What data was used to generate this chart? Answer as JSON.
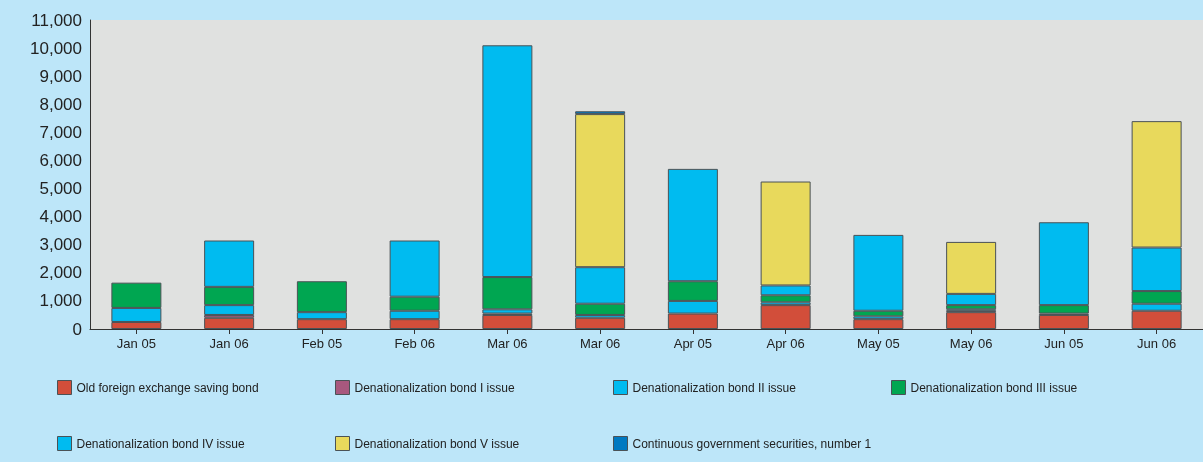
{
  "chart_data": {
    "type": "bar",
    "stacked": true,
    "categories": [
      "Jan 05",
      "Jan 06",
      "Feb 05",
      "Feb 06",
      "Mar 06",
      "Mar 06",
      "Apr 05",
      "Apr 06",
      "May 05",
      "May 06",
      "Jun 05",
      "Jun 06"
    ],
    "series": [
      {
        "name": "Old foreign exchange saving bond",
        "color": "#d24e3a",
        "values": [
          250,
          400,
          350,
          350,
          500,
          400,
          550,
          850,
          350,
          600,
          500,
          650
        ]
      },
      {
        "name": "Denationalization bond I issue",
        "color": "#a8587e",
        "values": [
          null,
          100,
          null,
          null,
          50,
          null,
          null,
          null,
          null,
          50,
          50,
          null
        ]
      },
      {
        "name": "Denationalization bond II issue",
        "color": "#00bbf0",
        "values": [
          500,
          350,
          250,
          300,
          150,
          100,
          450,
          100,
          100,
          50,
          null,
          250
        ]
      },
      {
        "name": "Denationalization bond III issue",
        "color": "#00a651",
        "values": [
          900,
          650,
          1100,
          500,
          1150,
          400,
          700,
          250,
          200,
          150,
          300,
          450
        ]
      },
      {
        "name": "Denationalization bond IV issue",
        "color": "#00bbf0",
        "values": [
          null,
          1650,
          null,
          2000,
          8250,
          1300,
          4000,
          350,
          2700,
          400,
          2950,
          1550
        ]
      },
      {
        "name": "Denationalization bond V issue",
        "color": "#e8d95c",
        "values": [
          null,
          null,
          null,
          null,
          null,
          5450,
          null,
          3700,
          null,
          1850,
          null,
          4500
        ]
      },
      {
        "name": "Continuous government securities, number 1",
        "color": "#0079c1",
        "values": [
          null,
          null,
          null,
          null,
          null,
          100,
          null,
          null,
          null,
          null,
          null,
          null
        ]
      }
    ],
    "ylim": [
      0,
      11000
    ],
    "yticks": [
      0,
      {
        "value": 1000,
        "label": "1,000"
      },
      {
        "value": 2000,
        "label": "2,000"
      },
      {
        "value": 3000,
        "label": "3,000"
      },
      {
        "value": 4000,
        "label": "4,000"
      },
      {
        "value": 5000,
        "label": "5,000"
      },
      {
        "value": 6000,
        "label": "6,000"
      },
      {
        "value": 7000,
        "label": "7,000"
      },
      {
        "value": 8000,
        "label": "8,000"
      },
      {
        "value": 9000,
        "label": "9,000"
      },
      {
        "value": 10000,
        "label": "10,000"
      },
      {
        "value": 11000,
        "label": "11,000"
      }
    ],
    "legend": "bottom"
  }
}
